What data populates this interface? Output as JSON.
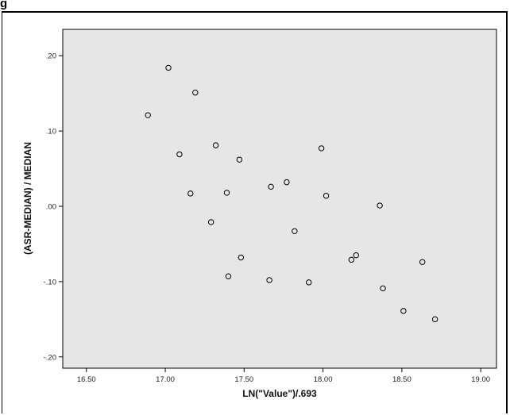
{
  "header": {
    "fragment": "g"
  },
  "chart_data": {
    "type": "scatter",
    "title": "",
    "xlabel": "LN(\"Value\")/.693",
    "ylabel": "(ASR-MEDIAN) / MEDIAN",
    "xlim": [
      16.35,
      19.1
    ],
    "ylim": [
      -0.215,
      0.235
    ],
    "xticks": [
      16.5,
      17.0,
      17.5,
      18.0,
      18.5,
      19.0
    ],
    "xtick_labels": [
      "16.50",
      "17.00",
      "17.50",
      "18.00",
      "18.50",
      "19.00"
    ],
    "yticks": [
      0.2,
      0.1,
      0.0,
      -0.1,
      -0.2
    ],
    "ytick_labels": [
      ".20",
      ".10",
      ".00",
      "-.10",
      "-.20"
    ],
    "grid": false,
    "plot_background": "#e6e6e6",
    "marker_color": "#000000",
    "marker": "open-circle",
    "points": [
      {
        "x": 16.89,
        "y": 0.121
      },
      {
        "x": 17.02,
        "y": 0.184
      },
      {
        "x": 17.09,
        "y": 0.069
      },
      {
        "x": 17.16,
        "y": 0.017
      },
      {
        "x": 17.19,
        "y": 0.151
      },
      {
        "x": 17.29,
        "y": -0.021
      },
      {
        "x": 17.32,
        "y": 0.081
      },
      {
        "x": 17.39,
        "y": 0.018
      },
      {
        "x": 17.4,
        "y": -0.093
      },
      {
        "x": 17.47,
        "y": 0.062
      },
      {
        "x": 17.48,
        "y": -0.068
      },
      {
        "x": 17.66,
        "y": -0.098
      },
      {
        "x": 17.67,
        "y": 0.026
      },
      {
        "x": 17.77,
        "y": 0.032
      },
      {
        "x": 17.82,
        "y": -0.033
      },
      {
        "x": 17.91,
        "y": -0.101
      },
      {
        "x": 17.99,
        "y": 0.077
      },
      {
        "x": 18.02,
        "y": 0.014
      },
      {
        "x": 18.18,
        "y": -0.071
      },
      {
        "x": 18.21,
        "y": -0.065
      },
      {
        "x": 18.36,
        "y": 0.001
      },
      {
        "x": 18.38,
        "y": -0.109
      },
      {
        "x": 18.51,
        "y": -0.139
      },
      {
        "x": 18.63,
        "y": -0.074
      },
      {
        "x": 18.71,
        "y": -0.15
      }
    ]
  }
}
